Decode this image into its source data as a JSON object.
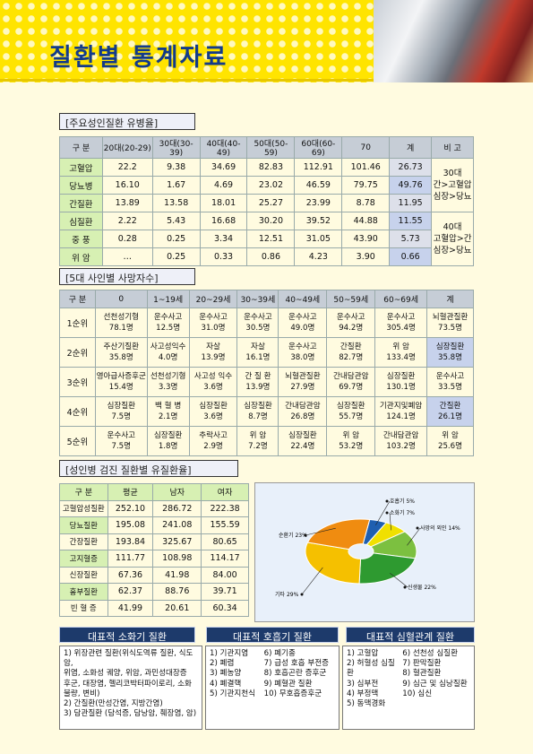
{
  "title": "질환별 통계자료",
  "sec1": {
    "title": "[주요성인질환 유병율]",
    "headers": [
      "구 분",
      "20대(20-29)",
      "30대(30-39)",
      "40대(40-49)",
      "50대(50-59)",
      "60대(60-69)",
      "70",
      "계",
      "비 고"
    ],
    "rows": [
      {
        "name": "고혈압",
        "vals": [
          "22.2",
          "9.38",
          "34.69",
          "82.83",
          "112.91",
          "101.46",
          "26.73"
        ]
      },
      {
        "name": "당뇨병",
        "vals": [
          "16.10",
          "1.67",
          "4.69",
          "23.02",
          "46.59",
          "79.75",
          "49.76"
        ]
      },
      {
        "name": "간질환",
        "vals": [
          "13.89",
          "13.58",
          "18.01",
          "25.27",
          "23.99",
          "8.78",
          "11.95"
        ]
      },
      {
        "name": "심질환",
        "vals": [
          "2.22",
          "5.43",
          "16.68",
          "30.20",
          "39.52",
          "44.88",
          "11.55"
        ]
      },
      {
        "name": "중 풍",
        "vals": [
          "0.28",
          "0.25",
          "3.34",
          "12.51",
          "31.05",
          "43.90",
          "5.73"
        ]
      },
      {
        "name": "위 암",
        "vals": [
          "…",
          "0.25",
          "0.33",
          "0.86",
          "4.23",
          "3.90",
          "0.66"
        ]
      }
    ],
    "note1": [
      "30대",
      "간>고혈압",
      "심장>당뇨"
    ],
    "note2": [
      "40대",
      "고혈압>간",
      "심장>당뇨"
    ]
  },
  "sec2": {
    "title": "[5대 사인별 사망자수]",
    "headers": [
      "구 분",
      "0",
      "1~19세",
      "20~29세",
      "30~39세",
      "40~49세",
      "50~59세",
      "60~69세",
      "계"
    ],
    "rows": [
      {
        "name": "1순위",
        "cells": [
          [
            "선천성기형",
            "78.1명"
          ],
          [
            "운수사고",
            "12.5명"
          ],
          [
            "운수사고",
            "31.0명"
          ],
          [
            "운수사고",
            "30.5명"
          ],
          [
            "운수사고",
            "49.0명"
          ],
          [
            "운수사고",
            "94.2명"
          ],
          [
            "운수사고",
            "305.4명"
          ],
          [
            "뇌혈관질환",
            "73.5명"
          ]
        ]
      },
      {
        "name": "2순위",
        "cells": [
          [
            "주산기질환",
            "35.8명"
          ],
          [
            "사고성익수",
            "4.0명"
          ],
          [
            "자살",
            "13.9명"
          ],
          [
            "자살",
            "16.1명"
          ],
          [
            "운수사고",
            "38.0명"
          ],
          [
            "간질환",
            "82.7명"
          ],
          [
            "위 암",
            "133.4명"
          ],
          [
            "심장질환",
            "35.8명"
          ]
        ]
      },
      {
        "name": "3순위",
        "cells": [
          [
            "영아급사증후군",
            "15.4명"
          ],
          [
            "선천성기형",
            "3.3명"
          ],
          [
            "사고성 익수",
            "3.6명"
          ],
          [
            "간 질 환",
            "13.9명"
          ],
          [
            "뇌혈관질환",
            "27.9명"
          ],
          [
            "간내담관암",
            "69.7명"
          ],
          [
            "심장질환",
            "130.1명"
          ],
          [
            "운수사고",
            "33.5명"
          ]
        ]
      },
      {
        "name": "4순위",
        "cells": [
          [
            "심장질환",
            "7.5명"
          ],
          [
            "백 혈 병",
            "2.1명"
          ],
          [
            "심장질환",
            "3.6명"
          ],
          [
            "심장질환",
            "8.7명"
          ],
          [
            "간내담관암",
            "26.8명"
          ],
          [
            "심장질환",
            "55.7명"
          ],
          [
            "기관지및폐암",
            "124.1명"
          ],
          [
            "간질환",
            "26.1명"
          ]
        ]
      },
      {
        "name": "5순위",
        "cells": [
          [
            "운수사고",
            "7.5명"
          ],
          [
            "심장질환",
            "1.8명"
          ],
          [
            "추락사고",
            "2.9명"
          ],
          [
            "위 암",
            "7.2명"
          ],
          [
            "심장질환",
            "22.4명"
          ],
          [
            "위 암",
            "53.2명"
          ],
          [
            "간내담관암",
            "103.2명"
          ],
          [
            "위 암",
            "25.6명"
          ]
        ]
      }
    ]
  },
  "sec3": {
    "title": "[성인병 검진 질환별 유질환율]",
    "headers": [
      "구 분",
      "평균",
      "남자",
      "여자"
    ],
    "rows": [
      {
        "name": "고혈압성질환",
        "vals": [
          "252.10",
          "286.72",
          "222.38"
        ]
      },
      {
        "name": "당뇨질환",
        "vals": [
          "195.08",
          "241.08",
          "155.59"
        ]
      },
      {
        "name": "간장질환",
        "vals": [
          "193.84",
          "325.67",
          "80.65"
        ]
      },
      {
        "name": "고지혈증",
        "vals": [
          "111.77",
          "108.98",
          "114.17"
        ]
      },
      {
        "name": "신장질환",
        "vals": [
          "67.36",
          "41.98",
          "84.00"
        ]
      },
      {
        "name": "흉부질환",
        "vals": [
          "62.37",
          "88.76",
          "39.71"
        ]
      },
      {
        "name": "빈 혈 증",
        "vals": [
          "41.99",
          "20.61",
          "60.34"
        ]
      }
    ]
  },
  "chart_data": {
    "type": "pie",
    "title": "",
    "slices": [
      {
        "label": "호흡기 5%",
        "value": 5,
        "color": "#1f5fb0"
      },
      {
        "label": "소화기 7%",
        "value": 7,
        "color": "#f0e000"
      },
      {
        "label": "사망의 외인 14%",
        "value": 14,
        "color": "#7cc040"
      },
      {
        "label": "신생물 22%",
        "value": 22,
        "color": "#2e9a30"
      },
      {
        "label": "기타 29%",
        "value": 29,
        "color": "#f5c000"
      },
      {
        "label": "순환기 23%",
        "value": 23,
        "color": "#f08c10"
      }
    ]
  },
  "bottom": {
    "tabs": [
      "대표적 소화기 질환",
      "대표적 호흡기 질환",
      "대표적 심혈관계 질환"
    ],
    "digest": [
      "1) 위장관련 질환(위식도역류 질환, 식도암,",
      "위염, 소화성 궤양, 위암, 과민성대장증",
      "후군, 대장염, 헬리코박터파이로리, 소화",
      "불량, 변비)",
      "2) 간질환(만성간염, 지방간염)",
      "3) 담관질환 (담석증, 담낭암, 췌장염, 암)"
    ],
    "resp_l": [
      "1) 기관지염",
      "2) 폐렴",
      "3) 폐농양",
      "4) 폐결핵",
      "5) 기관지천식"
    ],
    "resp_r": [
      "6) 폐기종",
      "7) 급성 호흡 부전증",
      "8) 호흡곤란 증후군",
      "9) 폐혈관 질환",
      "10) 무호흡증후군"
    ],
    "cardio_l": [
      "1) 고혈압",
      "2) 허혈성 심질환",
      "3) 심부전",
      "4) 부정맥",
      "5) 동맥경화"
    ],
    "cardio_r": [
      "6) 선천성 심질환",
      "7) 판막질환",
      "8) 혈관질환",
      "9) 심근 및 심낭질환",
      "10) 심신"
    ]
  }
}
